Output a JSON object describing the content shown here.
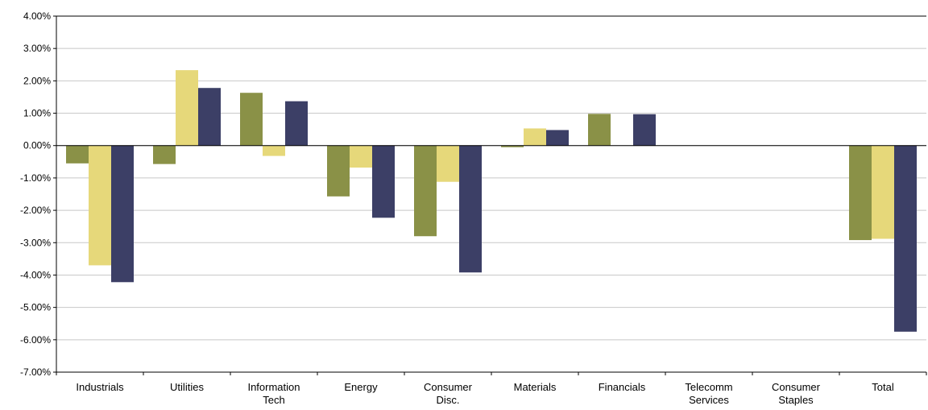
{
  "chart_data": {
    "type": "bar",
    "title": "",
    "xlabel": "",
    "ylabel": "",
    "categories": [
      [
        "Industrials"
      ],
      [
        "Utilities"
      ],
      [
        "Information",
        "Tech"
      ],
      [
        "Energy"
      ],
      [
        "Consumer",
        "Disc."
      ],
      [
        "Materials"
      ],
      [
        "Financials"
      ],
      [
        "Telecomm",
        "Services"
      ],
      [
        "Consumer",
        "Staples"
      ],
      [
        "Total"
      ]
    ],
    "series": [
      {
        "color": "#8a9147",
        "values": [
          -0.55,
          -0.57,
          1.63,
          -1.57,
          -2.8,
          -0.05,
          0.98,
          null,
          null,
          -2.92
        ]
      },
      {
        "color": "#e6d87a",
        "values": [
          -3.7,
          2.33,
          -0.32,
          -0.68,
          -1.12,
          0.53,
          null,
          null,
          null,
          -2.88
        ]
      },
      {
        "color": "#3c3f66",
        "values": [
          -4.22,
          1.78,
          1.37,
          -2.23,
          -3.92,
          0.48,
          0.97,
          null,
          null,
          -5.75
        ]
      }
    ],
    "ylim": [
      -7,
      4
    ],
    "yticks": [
      "4.00%",
      "3.00%",
      "2.00%",
      "1.00%",
      "0.00%",
      "-1.00%",
      "-2.00%",
      "-3.00%",
      "-4.00%",
      "-5.00%",
      "-6.00%",
      "-7.00%"
    ],
    "ytick_values": [
      4,
      3,
      2,
      1,
      0,
      -1,
      -2,
      -3,
      -4,
      -5,
      -6,
      -7
    ],
    "grid": true,
    "legend": "none"
  }
}
